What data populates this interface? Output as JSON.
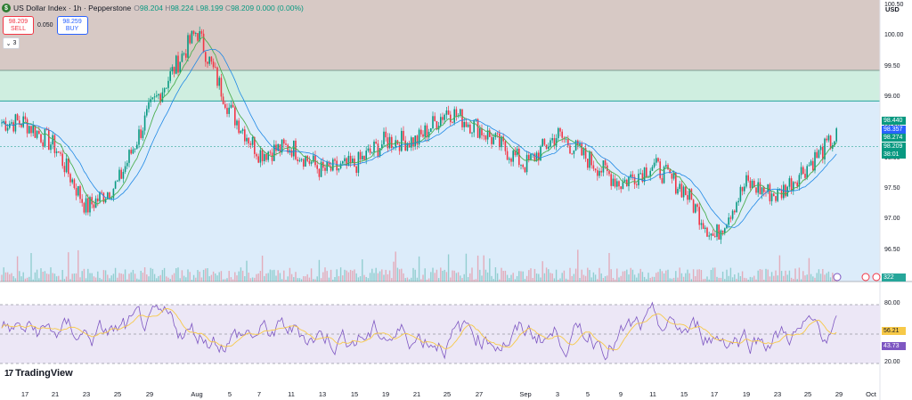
{
  "header": {
    "symbol": "US Dollar Index · 1h · Pepperstone",
    "open_label": "O",
    "open": "98.204",
    "high_label": "H",
    "high": "98.224",
    "low_label": "L",
    "low": "98.199",
    "close_label": "C",
    "close": "98.209",
    "change": "0.000 (0.00%)"
  },
  "trade": {
    "sell_price": "98.209",
    "sell_label": "SELL",
    "spread": "0.050",
    "buy_price": "98.259",
    "buy_label": "BUY"
  },
  "indicators_toggle": "3",
  "currency": "USD",
  "brand": "TradingView",
  "price_axis": [
    "100.50",
    "100.00",
    "99.50",
    "99.00",
    "98.50",
    "98.00",
    "97.50",
    "97.00",
    "96.50",
    "96.00"
  ],
  "price_labels": [
    {
      "value": "98.440",
      "color": "#089981"
    },
    {
      "value": "98.357",
      "color": "#2962ff"
    },
    {
      "value": "98.274",
      "color": "#089981"
    },
    {
      "value": "98.209",
      "color": "#089981"
    },
    {
      "value": "38:01",
      "color": "#089981"
    }
  ],
  "volume_label": "322",
  "rsi_axis": [
    "80.00",
    "20.00"
  ],
  "rsi_labels": [
    {
      "value": "56.21",
      "color": "#f7c948",
      "text": "#131722"
    },
    {
      "value": "43.73",
      "color": "#7e57c2",
      "text": "#ffffff"
    }
  ],
  "x_axis": [
    "17",
    "21",
    "23",
    "25",
    "29",
    "Aug",
    "5",
    "7",
    "11",
    "13",
    "15",
    "19",
    "21",
    "25",
    "27",
    "Sep",
    "3",
    "5",
    "9",
    "11",
    "15",
    "17",
    "19",
    "23",
    "25",
    "29",
    "Oct"
  ],
  "colors": {
    "up": "#089981",
    "down": "#f23645",
    "zone_top": "#d7c9c5",
    "zone_mid": "#cfeee0",
    "zone_low": "#dcecfa",
    "rsi_band": "#ece7f6",
    "rsi_line": "#7e57c2",
    "rsi_ma": "#f7c948",
    "ma_green": "#4caf50",
    "ma_blue": "#2962ff"
  },
  "chart_data": {
    "type": "candlestick",
    "title": "US Dollar Index · 1h · Pepperstone",
    "y_range": [
      96.0,
      100.6
    ],
    "key_prices": [
      {
        "x": "17",
        "y": 98.6
      },
      {
        "x": "21",
        "y": 98.2
      },
      {
        "x": "23",
        "y": 97.2
      },
      {
        "x": "25",
        "y": 97.6
      },
      {
        "x": "29",
        "y": 98.8
      },
      {
        "x": "Aug",
        "y": 100.1
      },
      {
        "x": "5",
        "y": 98.8
      },
      {
        "x": "7",
        "y": 98.1
      },
      {
        "x": "11",
        "y": 98.2
      },
      {
        "x": "13",
        "y": 97.8
      },
      {
        "x": "15",
        "y": 97.9
      },
      {
        "x": "19",
        "y": 98.3
      },
      {
        "x": "21",
        "y": 98.3
      },
      {
        "x": "25",
        "y": 98.8
      },
      {
        "x": "27",
        "y": 98.5
      },
      {
        "x": "Sep",
        "y": 97.9
      },
      {
        "x": "3",
        "y": 98.4
      },
      {
        "x": "5",
        "y": 98.0
      },
      {
        "x": "9",
        "y": 97.6
      },
      {
        "x": "11",
        "y": 97.9
      },
      {
        "x": "15",
        "y": 97.5
      },
      {
        "x": "17",
        "y": 96.7
      },
      {
        "x": "19",
        "y": 97.6
      },
      {
        "x": "23",
        "y": 97.4
      },
      {
        "x": "25",
        "y": 97.9
      },
      {
        "x": "29",
        "y": 98.4
      }
    ]
  }
}
